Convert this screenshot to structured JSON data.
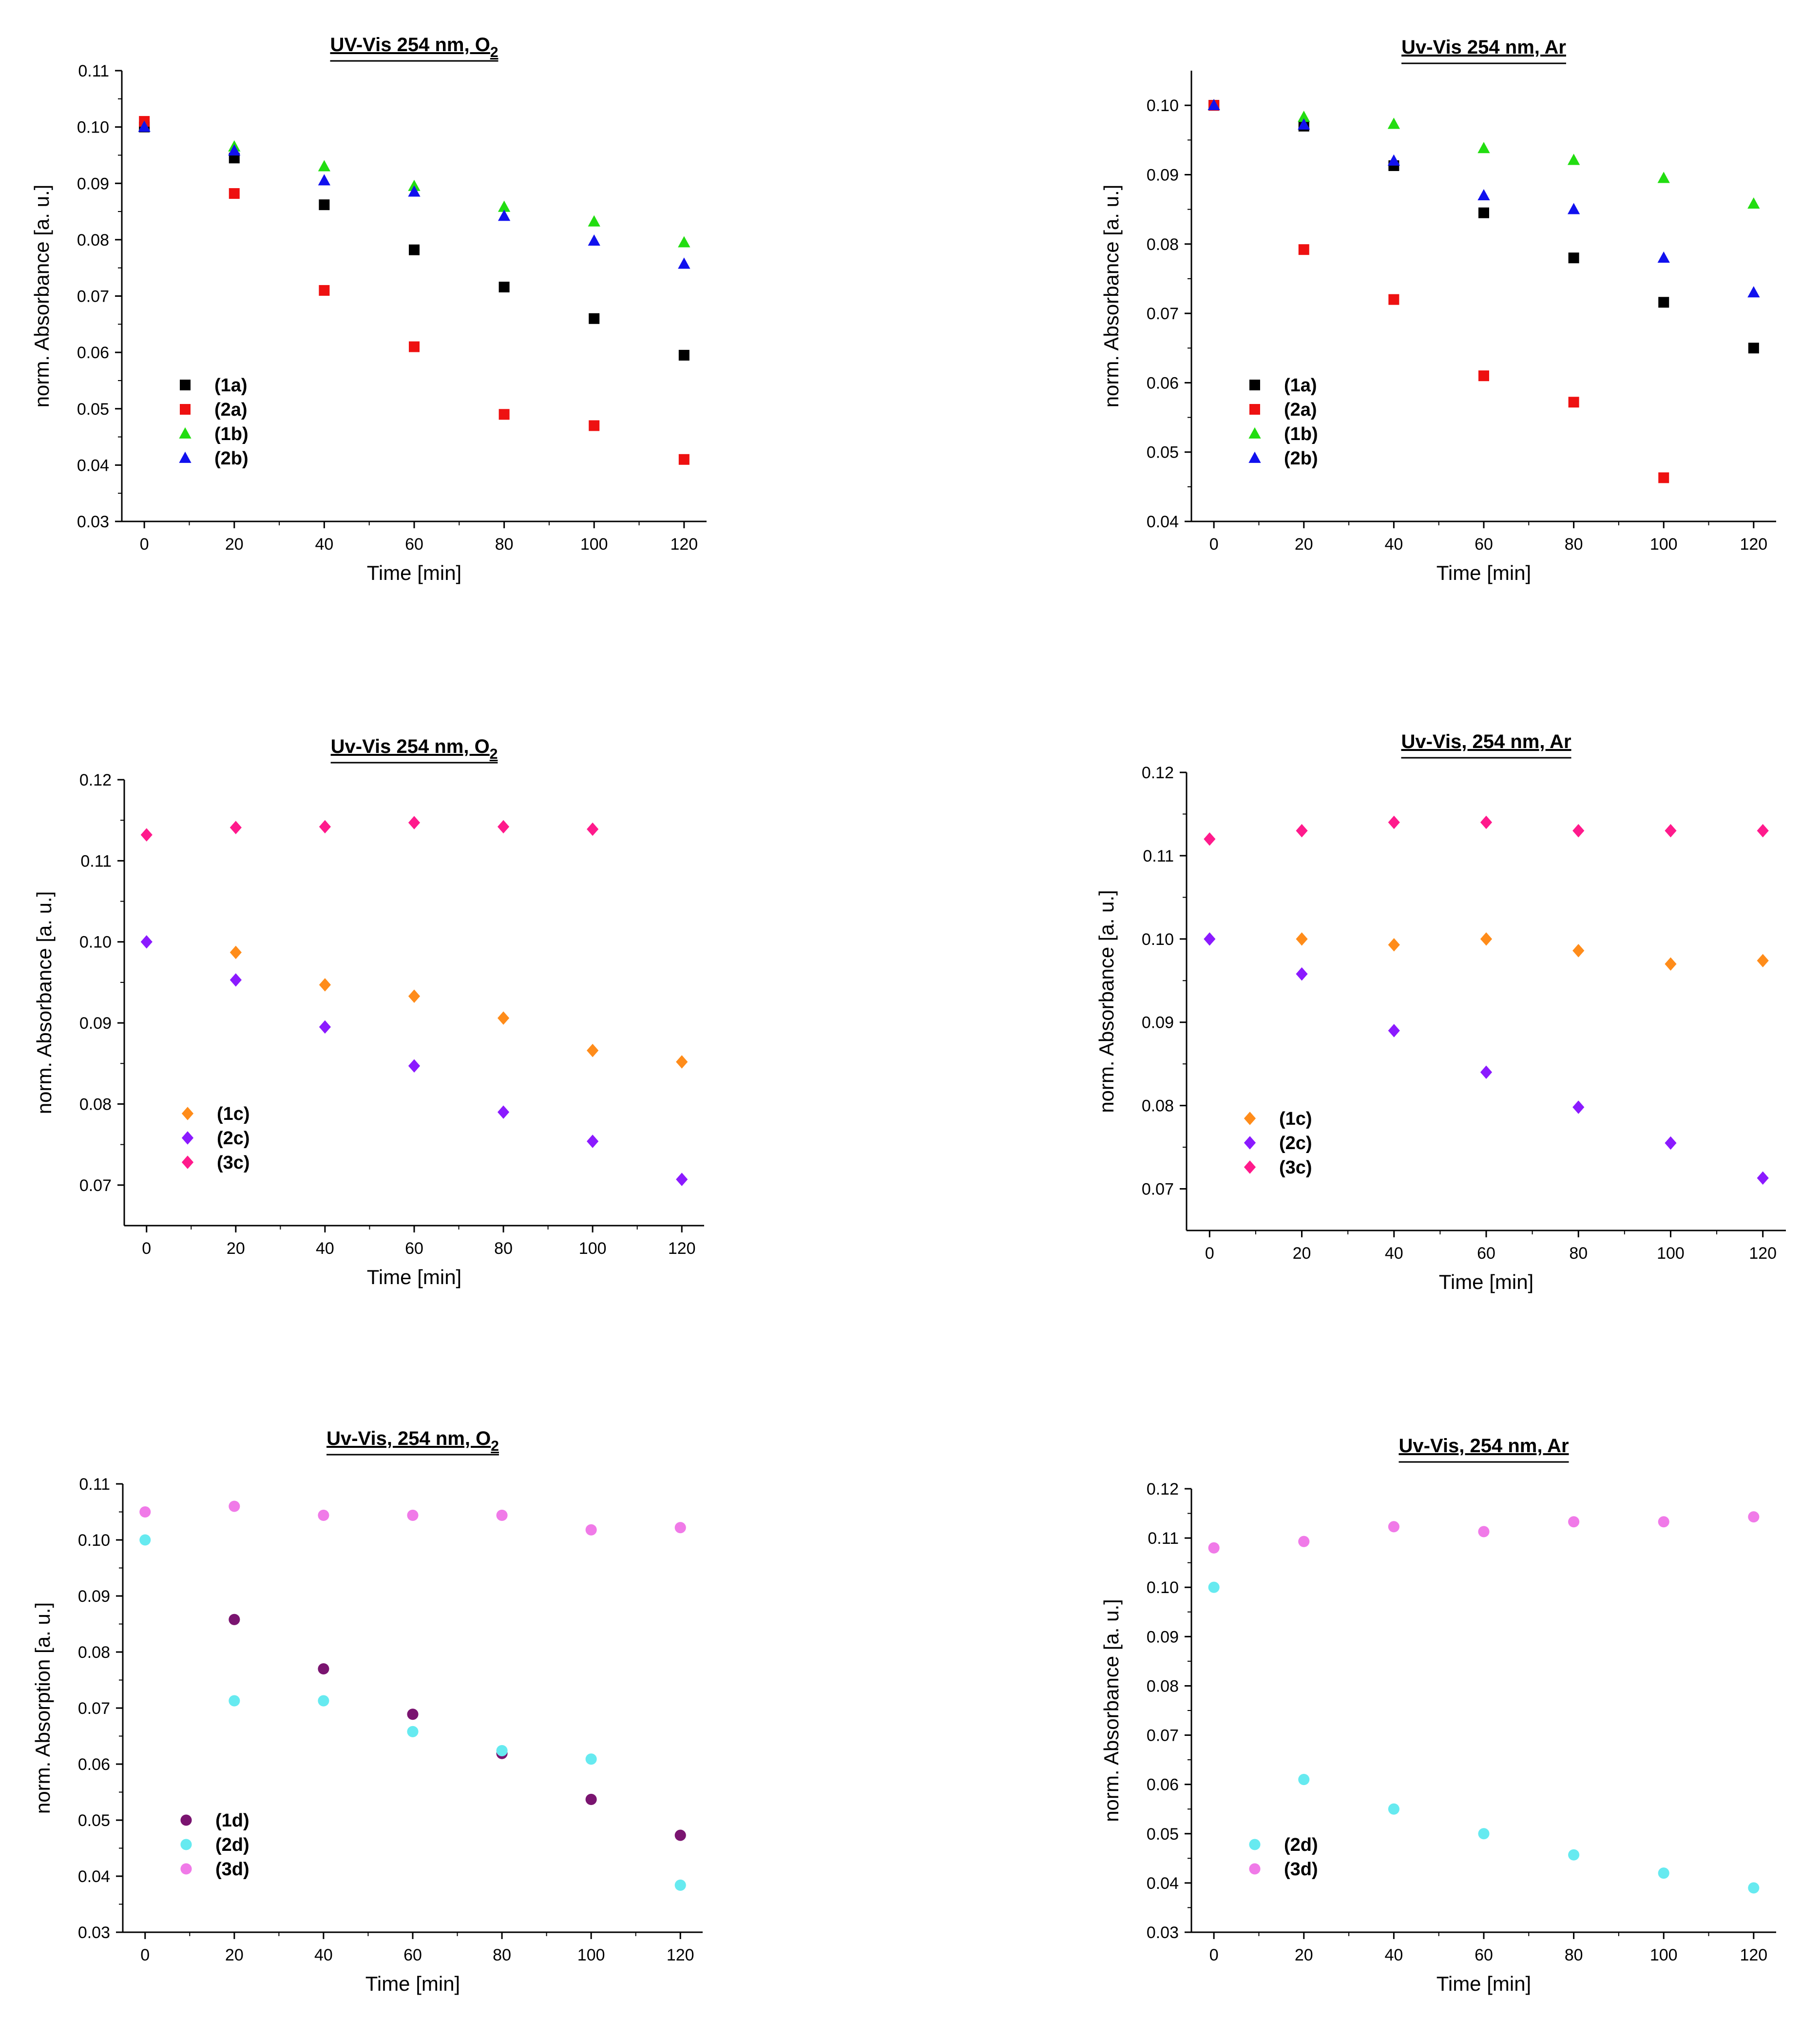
{
  "figure": {
    "name": "uv-vis-absorbance-figure"
  },
  "colors": {
    "1a": "#000000",
    "2a": "#ee1111",
    "1b": "#22dd11",
    "2b": "#1111ee",
    "1c": "#ff8c1a",
    "2c": "#8b1aff",
    "3c": "#ff1a8c",
    "1d": "#7a1470",
    "2d": "#66eaf0",
    "3d": "#f07ae8"
  },
  "chart_data": [
    {
      "type": "scatter",
      "title": "UV-Vis 254 nm, O",
      "title_subscript": "2",
      "xlabel": "Time [min]",
      "ylabel": "norm. Absorbance [a. u.]",
      "xlim": [
        -5,
        125
      ],
      "ylim": [
        0.03,
        0.11
      ],
      "xticks": [
        0,
        20,
        40,
        60,
        80,
        100,
        120
      ],
      "xtick_labels": [
        "0",
        "20",
        "40",
        "60",
        "80",
        "100",
        "120"
      ],
      "yticks": [
        0.03,
        0.04,
        0.05,
        0.06,
        0.07,
        0.08,
        0.09,
        0.1,
        0.11
      ],
      "ytick_labels": [
        "0.03",
        "0.04",
        "0.05",
        "0.06",
        "0.07",
        "0.08",
        "0.09",
        "0.10",
        "0.11"
      ],
      "legend_position": "lower-left",
      "series": [
        {
          "key": "1a",
          "name": "(1a)",
          "marker": "square",
          "x": [
            0,
            20,
            40,
            60,
            80,
            100,
            120
          ],
          "y": [
            0.1,
            0.0945,
            0.0862,
            0.0782,
            0.0716,
            0.066,
            0.0595
          ]
        },
        {
          "key": "2a",
          "name": "(2a)",
          "marker": "square",
          "x": [
            0,
            20,
            40,
            60,
            80,
            100,
            120
          ],
          "y": [
            0.101,
            0.0882,
            0.071,
            0.061,
            0.049,
            0.047,
            0.041
          ]
        },
        {
          "key": "1b",
          "name": "(1b)",
          "marker": "triangle",
          "x": [
            0,
            20,
            40,
            60,
            80,
            100,
            120
          ],
          "y": [
            0.1,
            0.0965,
            0.093,
            0.0895,
            0.0858,
            0.0832,
            0.0795
          ]
        },
        {
          "key": "2b",
          "name": "(2b)",
          "marker": "triangle",
          "x": [
            0,
            20,
            40,
            60,
            80,
            100,
            120
          ],
          "y": [
            0.1,
            0.0958,
            0.0905,
            0.0885,
            0.0842,
            0.0798,
            0.0757
          ]
        }
      ]
    },
    {
      "type": "scatter",
      "title": "Uv-Vis 254 nm, Ar",
      "title_subscript": "",
      "xlabel": "Time [min]",
      "ylabel": "norm. Absorbance [a. u.]",
      "xlim": [
        -5,
        125
      ],
      "ylim": [
        0.04,
        0.105
      ],
      "xticks": [
        0,
        20,
        40,
        60,
        80,
        100,
        120
      ],
      "xtick_labels": [
        "0",
        "20",
        "40",
        "60",
        "80",
        "100",
        "120"
      ],
      "yticks": [
        0.04,
        0.05,
        0.06,
        0.07,
        0.08,
        0.09,
        0.1
      ],
      "ytick_labels": [
        "0.04",
        "0.05",
        "0.06",
        "0.07",
        "0.08",
        "0.09",
        "0.10"
      ],
      "legend_position": "lower-left",
      "series": [
        {
          "key": "1a",
          "name": "(1a)",
          "marker": "square",
          "x": [
            0,
            20,
            40,
            60,
            80,
            100,
            120
          ],
          "y": [
            0.1,
            0.097,
            0.0913,
            0.0845,
            0.078,
            0.0716,
            0.065
          ]
        },
        {
          "key": "2a",
          "name": "(2a)",
          "marker": "square",
          "x": [
            0,
            20,
            40,
            60,
            80,
            100
          ],
          "y": [
            0.1,
            0.0792,
            0.072,
            0.061,
            0.0572,
            0.0463
          ]
        },
        {
          "key": "1b",
          "name": "(1b)",
          "marker": "triangle",
          "x": [
            0,
            20,
            40,
            60,
            80,
            100,
            120
          ],
          "y": [
            0.1,
            0.0983,
            0.0973,
            0.0938,
            0.0921,
            0.0895,
            0.0858
          ]
        },
        {
          "key": "2b",
          "name": "(2b)",
          "marker": "triangle",
          "x": [
            0,
            20,
            40,
            60,
            80,
            100,
            120
          ],
          "y": [
            0.1,
            0.0972,
            0.092,
            0.087,
            0.085,
            0.078,
            0.073
          ]
        }
      ]
    },
    {
      "type": "scatter",
      "title": "Uv-Vis 254 nm, O",
      "title_subscript": "2",
      "xlabel": "Time [min]",
      "ylabel": "norm. Absorbance [a. u.]",
      "xlim": [
        -5,
        125
      ],
      "ylim": [
        0.065,
        0.12
      ],
      "xticks": [
        0,
        20,
        40,
        60,
        80,
        100,
        120
      ],
      "xtick_labels": [
        "0",
        "20",
        "40",
        "60",
        "80",
        "100",
        "120"
      ],
      "yticks": [
        0.07,
        0.08,
        0.09,
        0.1,
        0.11,
        0.12
      ],
      "ytick_labels": [
        "0.07",
        "0.08",
        "0.09",
        "0.10",
        "0.11",
        "0.12"
      ],
      "legend_position": "lower-left",
      "series": [
        {
          "key": "1c",
          "name": "(1c)",
          "marker": "diamond",
          "x": [
            20,
            40,
            60,
            80,
            100,
            120
          ],
          "y": [
            0.0987,
            0.0947,
            0.0933,
            0.0906,
            0.0866,
            0.0852
          ]
        },
        {
          "key": "2c",
          "name": "(2c)",
          "marker": "diamond",
          "x": [
            0,
            20,
            40,
            60,
            80,
            100,
            120
          ],
          "y": [
            0.1,
            0.0953,
            0.0895,
            0.0847,
            0.079,
            0.0754,
            0.0707
          ]
        },
        {
          "key": "3c",
          "name": "(3c)",
          "marker": "diamond",
          "x": [
            0,
            20,
            40,
            60,
            80,
            100
          ],
          "y": [
            0.1132,
            0.1141,
            0.1142,
            0.1147,
            0.1142,
            0.1139
          ]
        }
      ]
    },
    {
      "type": "scatter",
      "title": "Uv-Vis, 254 nm, Ar",
      "title_subscript": "",
      "xlabel": "Time [min]",
      "ylabel": "norm. Absorbance [a. u.]",
      "xlim": [
        -5,
        125
      ],
      "ylim": [
        0.065,
        0.12
      ],
      "xticks": [
        0,
        20,
        40,
        60,
        80,
        100,
        120
      ],
      "xtick_labels": [
        "0",
        "20",
        "40",
        "60",
        "80",
        "100",
        "120"
      ],
      "yticks": [
        0.07,
        0.08,
        0.09,
        0.1,
        0.11,
        0.12
      ],
      "ytick_labels": [
        "0.07",
        "0.08",
        "0.09",
        "0.10",
        "0.11",
        "0.12"
      ],
      "legend_position": "lower-left",
      "series": [
        {
          "key": "1c",
          "name": "(1c)",
          "marker": "diamond",
          "x": [
            20,
            40,
            60,
            80,
            100,
            120
          ],
          "y": [
            0.1,
            0.0993,
            0.1,
            0.0986,
            0.097,
            0.0974
          ]
        },
        {
          "key": "2c",
          "name": "(2c)",
          "marker": "diamond",
          "x": [
            0,
            20,
            40,
            60,
            80,
            100,
            120
          ],
          "y": [
            0.1,
            0.0958,
            0.089,
            0.084,
            0.0798,
            0.0755,
            0.0713
          ]
        },
        {
          "key": "3c",
          "name": "(3c)",
          "marker": "diamond",
          "x": [
            0,
            20,
            40,
            60,
            80,
            100,
            120
          ],
          "y": [
            0.112,
            0.113,
            0.114,
            0.114,
            0.113,
            0.113,
            0.113
          ]
        }
      ]
    },
    {
      "type": "scatter",
      "title": "Uv-Vis, 254 nm, O",
      "title_subscript": "2",
      "xlabel": "Time [min]",
      "ylabel": "norm. Absorption [a. u.]",
      "xlim": [
        -5,
        125
      ],
      "ylim": [
        0.03,
        0.11
      ],
      "xticks": [
        0,
        20,
        40,
        60,
        80,
        100,
        120
      ],
      "xtick_labels": [
        "0",
        "20",
        "40",
        "60",
        "80",
        "100",
        "120"
      ],
      "yticks": [
        0.03,
        0.04,
        0.05,
        0.06,
        0.07,
        0.08,
        0.09,
        0.1,
        0.11
      ],
      "ytick_labels": [
        "0.03",
        "0.04",
        "0.05",
        "0.06",
        "0.07",
        "0.08",
        "0.09",
        "0.10",
        "0.11"
      ],
      "legend_position": "lower-left",
      "series": [
        {
          "key": "1d",
          "name": "(1d)",
          "marker": "circle",
          "x": [
            20,
            40,
            60,
            80,
            100,
            120
          ],
          "y": [
            0.0858,
            0.077,
            0.0689,
            0.0619,
            0.0537,
            0.0473
          ]
        },
        {
          "key": "2d",
          "name": "(2d)",
          "marker": "circle",
          "x": [
            0,
            20,
            40,
            60,
            80,
            100,
            120
          ],
          "y": [
            0.1,
            0.0713,
            0.0713,
            0.0658,
            0.0624,
            0.0609,
            0.0384
          ]
        },
        {
          "key": "3d",
          "name": "(3d)",
          "marker": "circle",
          "x": [
            0,
            20,
            40,
            60,
            80,
            100,
            120
          ],
          "y": [
            0.105,
            0.106,
            0.1044,
            0.1044,
            0.1044,
            0.1018,
            0.1022
          ]
        }
      ]
    },
    {
      "type": "scatter",
      "title": "Uv-Vis, 254 nm, Ar",
      "title_subscript": "",
      "xlabel": "Time [min]",
      "ylabel": "norm. Absorbance [a. u.]",
      "xlim": [
        -5,
        125
      ],
      "ylim": [
        0.03,
        0.12
      ],
      "xticks": [
        0,
        20,
        40,
        60,
        80,
        100,
        120
      ],
      "xtick_labels": [
        "0",
        "20",
        "40",
        "60",
        "80",
        "100",
        "120"
      ],
      "yticks": [
        0.03,
        0.04,
        0.05,
        0.06,
        0.07,
        0.08,
        0.09,
        0.1,
        0.11,
        0.12
      ],
      "ytick_labels": [
        "0.03",
        "0.04",
        "0.05",
        "0.06",
        "0.07",
        "0.08",
        "0.09",
        "0.10",
        "0.11",
        "0.12"
      ],
      "legend_position": "lower-left",
      "series": [
        {
          "key": "2d",
          "name": "(2d)",
          "marker": "circle",
          "x": [
            0,
            20,
            40,
            60,
            80,
            100,
            120
          ],
          "y": [
            0.1,
            0.061,
            0.055,
            0.05,
            0.0457,
            0.042,
            0.039
          ]
        },
        {
          "key": "3d",
          "name": "(3d)",
          "marker": "circle",
          "x": [
            0,
            20,
            40,
            60,
            80,
            100,
            120
          ],
          "y": [
            0.108,
            0.1093,
            0.1123,
            0.1113,
            0.1133,
            0.1133,
            0.1143
          ]
        }
      ]
    }
  ]
}
